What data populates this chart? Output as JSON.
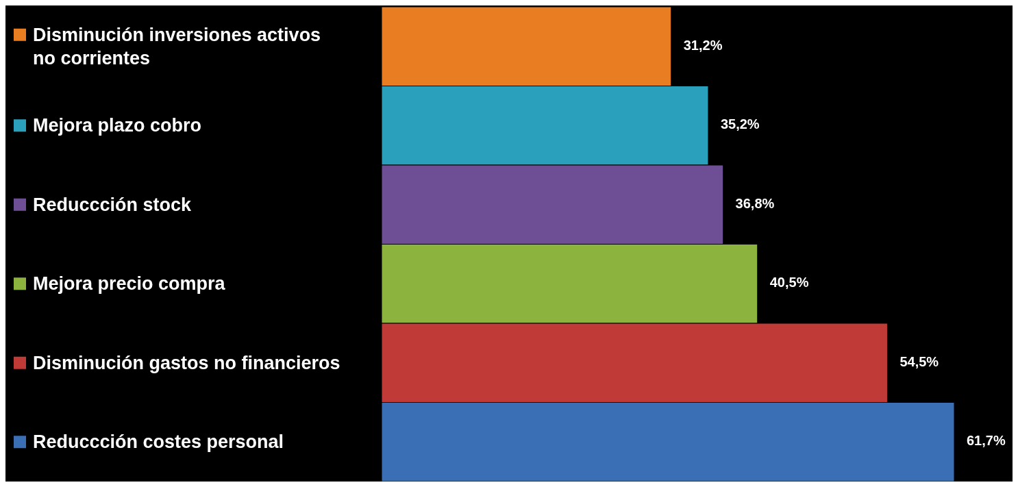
{
  "chart_data": {
    "type": "bar",
    "orientation": "horizontal",
    "categories": [
      "Disminución inversiones activos no corrientes",
      "Mejora plazo cobro",
      "Reduccción stock",
      "Mejora precio compra",
      "Disminución gastos no financieros",
      "Reduccción costes personal"
    ],
    "values": [
      31.2,
      35.2,
      36.8,
      40.5,
      54.5,
      61.7
    ],
    "colors": [
      "#e87d22",
      "#2ba0bd",
      "#6e4f96",
      "#8db33f",
      "#c03a37",
      "#3a6fb5"
    ],
    "value_labels": [
      "31,2%",
      "35,2%",
      "36,8%",
      "40,5%",
      "54,5%",
      "61,7%"
    ]
  }
}
